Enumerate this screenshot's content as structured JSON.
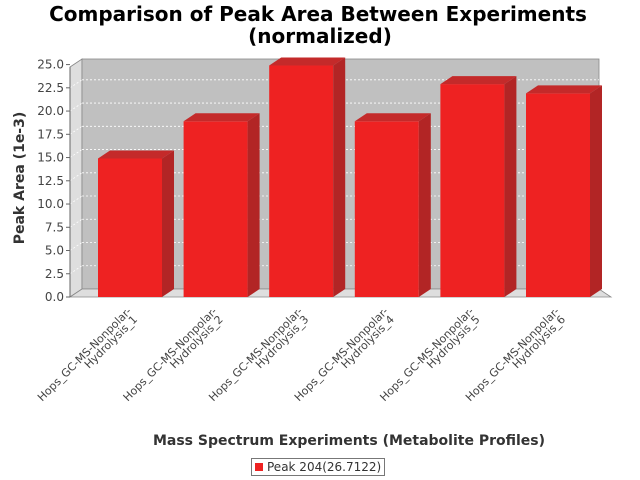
{
  "chart_data": {
    "type": "bar",
    "title": "Comparison of Peak Area Between Experiments",
    "subtitle": "(normalized)",
    "xlabel": "Mass Spectrum Experiments (Metabolite Profiles)",
    "ylabel": "Peak Area (1e-3)",
    "categories": [
      [
        "Hops_GC-MS-Nonpolar-",
        "Hydrolysis_1"
      ],
      [
        "Hops_GC-MS-Nonpolar-",
        "Hydrolysis_2"
      ],
      [
        "Hops_GC-MS-Nonpolar-",
        "Hydrolysis_3"
      ],
      [
        "Hops_GC-MS-Nonpolar-",
        "Hydrolysis_4"
      ],
      [
        "Hops_GC-MS-Nonpolar-",
        "Hydrolysis_5"
      ],
      [
        "Hops_GC-MS-Nonpolar-",
        "Hydrolysis_6"
      ]
    ],
    "series": [
      {
        "name": "Peak 204(26.7122)",
        "values": [
          14.9,
          18.9,
          24.9,
          18.9,
          22.9,
          21.9
        ],
        "color": "#ee2222"
      }
    ],
    "ylim": [
      0,
      25.6
    ],
    "yticks": [
      "0.0",
      "2.5",
      "5.0",
      "7.5",
      "10.0",
      "12.5",
      "15.0",
      "17.5",
      "20.0",
      "22.5",
      "25.0"
    ],
    "grid": true,
    "legend_position": "bottom",
    "plot_background": "#c0c0c0"
  }
}
